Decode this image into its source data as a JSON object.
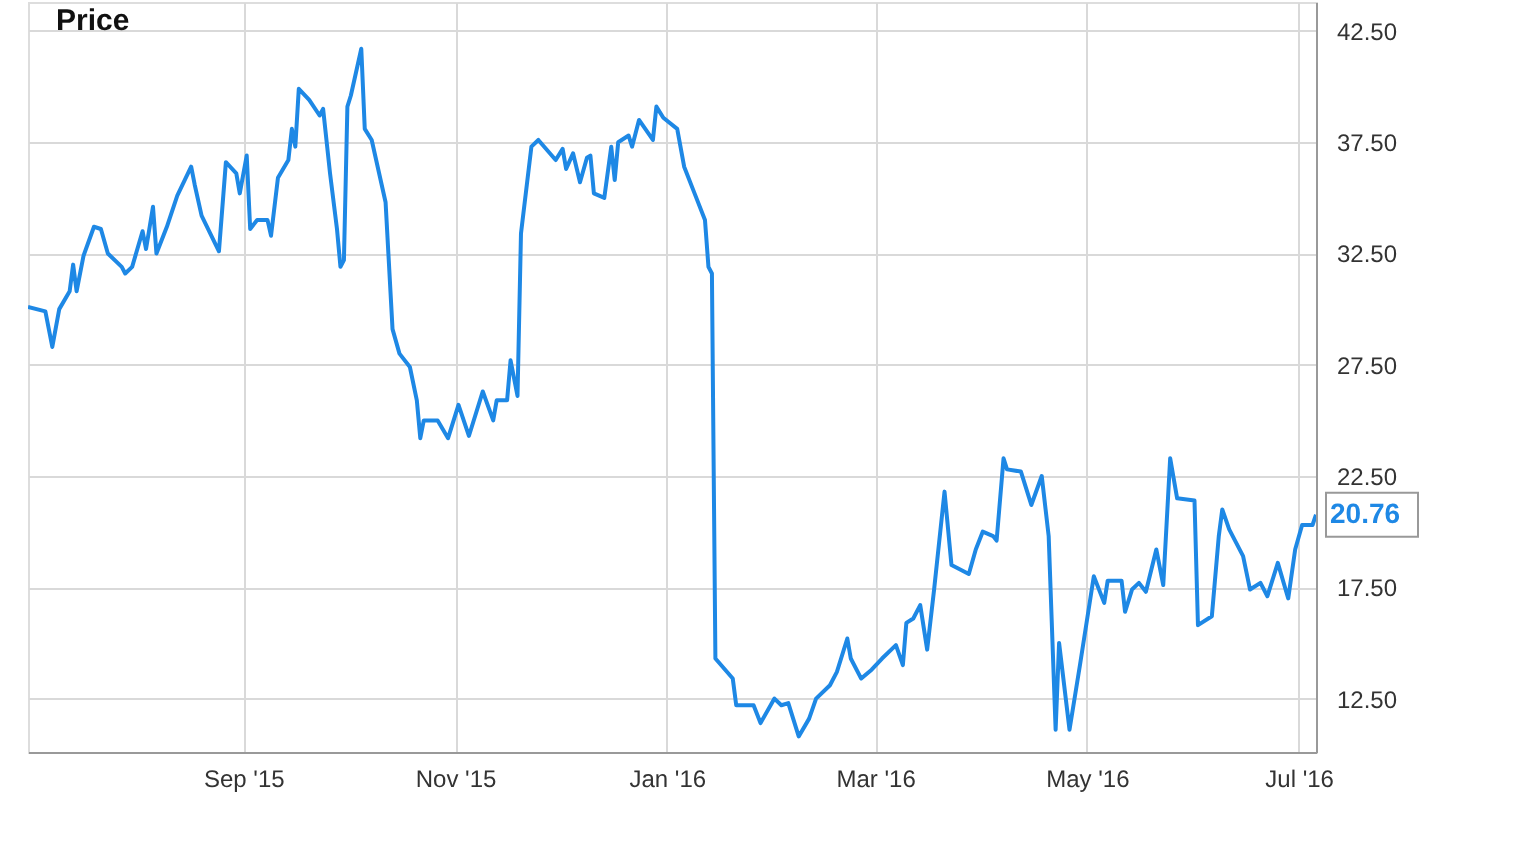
{
  "chart_data": {
    "type": "line",
    "title": "Price",
    "x": [
      "2015-07-01",
      "2015-07-06",
      "2015-07-08",
      "2015-07-10",
      "2015-07-13",
      "2015-07-14",
      "2015-07-15",
      "2015-07-17",
      "2015-07-20",
      "2015-07-22",
      "2015-07-24",
      "2015-07-28",
      "2015-07-29",
      "2015-07-31",
      "2015-08-03",
      "2015-08-04",
      "2015-08-06",
      "2015-08-07",
      "2015-08-10",
      "2015-08-13",
      "2015-08-17",
      "2015-08-18",
      "2015-08-20",
      "2015-08-25",
      "2015-08-27",
      "2015-08-30",
      "2015-08-31",
      "2015-09-02",
      "2015-09-03",
      "2015-09-05",
      "2015-09-08",
      "2015-09-09",
      "2015-09-11",
      "2015-09-14",
      "2015-09-15",
      "2015-09-16",
      "2015-09-17",
      "2015-09-20",
      "2015-09-23",
      "2015-09-24",
      "2015-09-26",
      "2015-09-28",
      "2015-09-29",
      "2015-09-30",
      "2015-10-01",
      "2015-10-02",
      "2015-10-05",
      "2015-10-06",
      "2015-10-08",
      "2015-10-12",
      "2015-10-14",
      "2015-10-16",
      "2015-10-19",
      "2015-10-21",
      "2015-10-22",
      "2015-10-23",
      "2015-10-27",
      "2015-10-30",
      "2015-11-02",
      "2015-11-05",
      "2015-11-09",
      "2015-11-12",
      "2015-11-13",
      "2015-11-16",
      "2015-11-17",
      "2015-11-19",
      "2015-11-20",
      "2015-11-23",
      "2015-11-25",
      "2015-11-30",
      "2015-12-02",
      "2015-12-03",
      "2015-12-05",
      "2015-12-07",
      "2015-12-09",
      "2015-12-10",
      "2015-12-11",
      "2015-12-14",
      "2015-12-16",
      "2015-12-17",
      "2015-12-18",
      "2015-12-21",
      "2015-12-22",
      "2015-12-24",
      "2015-12-28",
      "2015-12-29",
      "2015-12-31",
      "2016-01-04",
      "2016-01-06",
      "2016-01-09",
      "2016-01-12",
      "2016-01-13",
      "2016-01-14",
      "2016-01-15",
      "2016-01-20",
      "2016-01-21",
      "2016-01-26",
      "2016-01-28",
      "2016-02-01",
      "2016-02-03",
      "2016-02-05",
      "2016-02-08",
      "2016-02-11",
      "2016-02-13",
      "2016-02-17",
      "2016-02-19",
      "2016-02-22",
      "2016-02-23",
      "2016-02-26",
      "2016-02-29",
      "2016-03-03",
      "2016-03-07",
      "2016-03-09",
      "2016-03-10",
      "2016-03-12",
      "2016-03-14",
      "2016-03-16",
      "2016-03-18",
      "2016-03-21",
      "2016-03-23",
      "2016-03-28",
      "2016-03-30",
      "2016-04-01",
      "2016-04-04",
      "2016-04-05",
      "2016-04-07",
      "2016-04-08",
      "2016-04-12",
      "2016-04-15",
      "2016-04-18",
      "2016-04-20",
      "2016-04-22",
      "2016-04-23",
      "2016-04-26",
      "2016-04-29",
      "2016-05-03",
      "2016-05-06",
      "2016-05-07",
      "2016-05-11",
      "2016-05-12",
      "2016-05-14",
      "2016-05-16",
      "2016-05-18",
      "2016-05-21",
      "2016-05-23",
      "2016-05-25",
      "2016-05-27",
      "2016-06-01",
      "2016-06-02",
      "2016-06-06",
      "2016-06-08",
      "2016-06-09",
      "2016-06-11",
      "2016-06-15",
      "2016-06-17",
      "2016-06-20",
      "2016-06-22",
      "2016-06-25",
      "2016-06-28",
      "2016-06-30",
      "2016-07-02",
      "2016-07-05",
      "2016-07-06"
    ],
    "series": [
      {
        "color": "#1e88e5",
        "values": [
          30.1,
          29.9,
          28.3,
          30.0,
          30.8,
          32.0,
          30.8,
          32.4,
          33.7,
          33.6,
          32.5,
          31.9,
          31.6,
          31.9,
          33.5,
          32.7,
          34.6,
          32.5,
          33.7,
          35.1,
          36.4,
          35.6,
          34.2,
          32.6,
          36.6,
          36.1,
          35.2,
          36.9,
          33.6,
          34.0,
          34.0,
          33.3,
          35.9,
          36.7,
          38.1,
          37.3,
          39.9,
          39.4,
          38.7,
          39.0,
          36.1,
          33.6,
          31.9,
          32.2,
          39.1,
          39.6,
          41.7,
          38.1,
          37.6,
          34.8,
          29.1,
          28.0,
          27.4,
          25.9,
          24.2,
          25.0,
          25.0,
          24.2,
          25.7,
          24.3,
          26.3,
          25.0,
          25.9,
          25.9,
          27.7,
          26.1,
          33.4,
          37.3,
          37.6,
          36.7,
          37.2,
          36.3,
          37.0,
          35.7,
          36.8,
          36.9,
          35.2,
          35.0,
          37.3,
          35.8,
          37.5,
          37.8,
          37.3,
          38.5,
          37.6,
          39.1,
          38.6,
          38.1,
          36.4,
          35.2,
          34.0,
          31.9,
          31.6,
          14.3,
          13.4,
          12.2,
          12.2,
          11.4,
          12.5,
          12.2,
          12.3,
          10.8,
          11.6,
          12.5,
          13.1,
          13.7,
          15.2,
          14.3,
          13.4,
          13.8,
          14.3,
          14.9,
          14.0,
          15.9,
          16.1,
          16.7,
          14.7,
          17.4,
          21.8,
          18.5,
          18.1,
          19.2,
          20.0,
          19.8,
          19.6,
          23.3,
          22.8,
          22.7,
          21.2,
          22.5,
          19.8,
          11.1,
          15.0,
          11.1,
          14.0,
          18.0,
          16.8,
          17.8,
          17.8,
          16.4,
          17.4,
          17.7,
          17.3,
          19.2,
          17.6,
          23.3,
          21.5,
          21.4,
          15.8,
          16.2,
          19.8,
          21.0,
          20.1,
          18.9,
          17.4,
          17.7,
          17.1,
          18.6,
          17.0,
          19.2,
          20.3,
          20.3,
          20.76
        ]
      }
    ],
    "xlim": [
      "2015-07-01",
      "2016-07-06"
    ],
    "xticks": [
      {
        "value": "2015-09-01",
        "label": "Sep '15"
      },
      {
        "value": "2015-11-01",
        "label": "Nov '15"
      },
      {
        "value": "2016-01-01",
        "label": "Jan '16"
      },
      {
        "value": "2016-03-01",
        "label": "Mar '16"
      },
      {
        "value": "2016-05-01",
        "label": "May '16"
      },
      {
        "value": "2016-07-01",
        "label": "Jul '16"
      }
    ],
    "ylim": [
      10.1,
      43.8
    ],
    "yticks": [
      {
        "value": 12.5,
        "label": "12.50"
      },
      {
        "value": 17.5,
        "label": "17.50"
      },
      {
        "value": 22.5,
        "label": "22.50"
      },
      {
        "value": 27.5,
        "label": "27.50"
      },
      {
        "value": 32.5,
        "label": "32.50"
      },
      {
        "value": 37.5,
        "label": "37.50"
      },
      {
        "value": 42.5,
        "label": "42.50"
      }
    ],
    "annotations": [
      {
        "text": "20.76",
        "x": "2016-07-06",
        "y": 20.76
      }
    ],
    "grid": true,
    "marker": "none",
    "line_style": "solid"
  }
}
